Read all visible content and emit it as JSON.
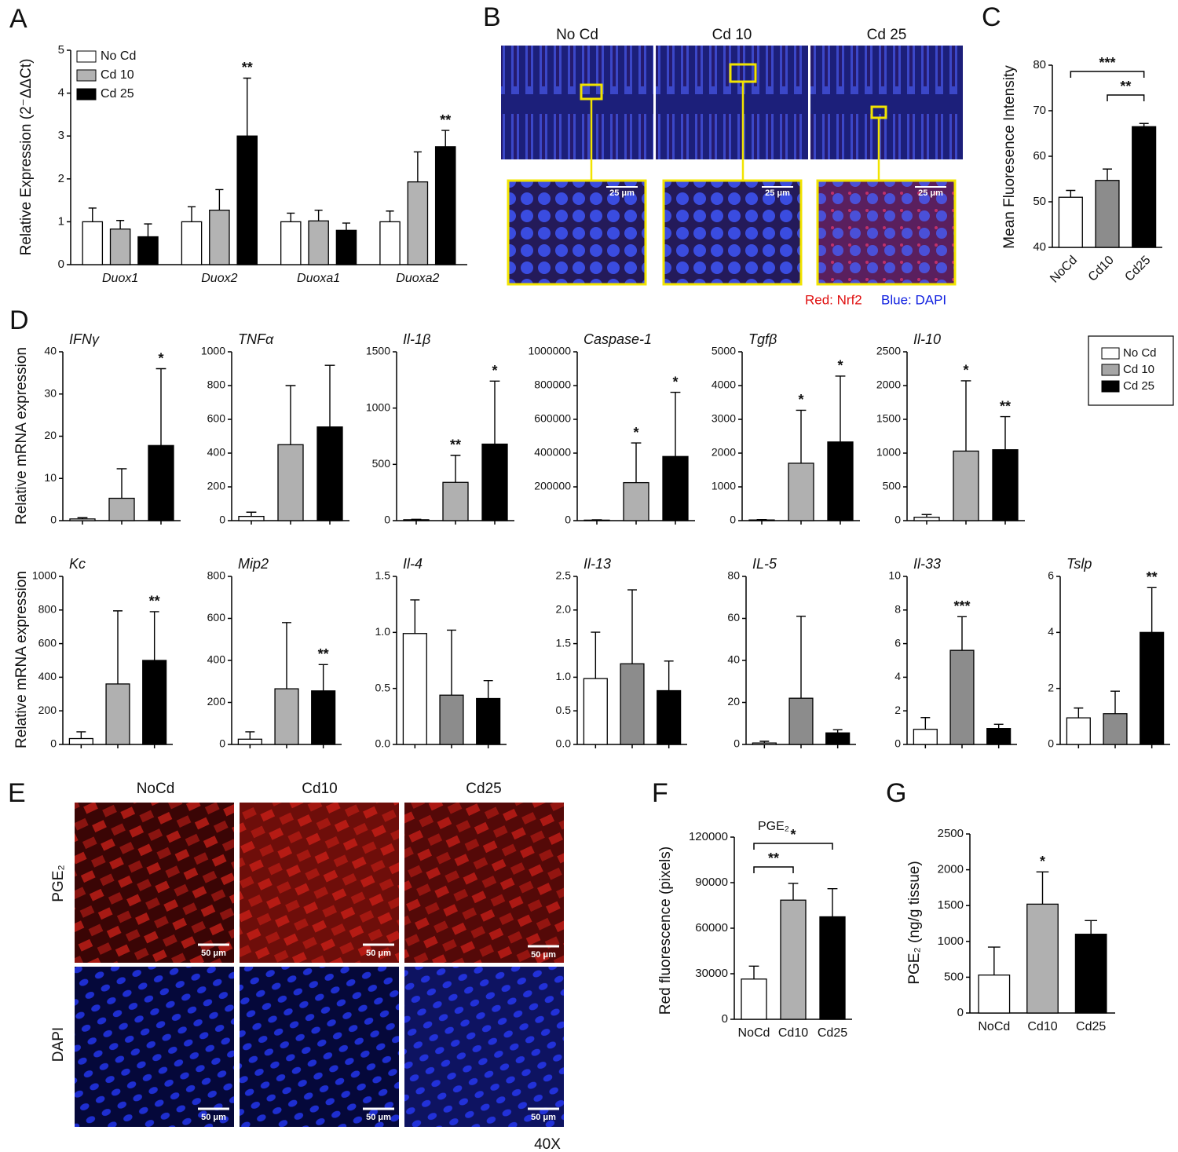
{
  "panel_labels": [
    "A",
    "B",
    "C",
    "D",
    "E",
    "F",
    "G"
  ],
  "panel_B": {
    "columns": [
      "No Cd",
      "Cd 10",
      "Cd 25"
    ],
    "scale_bar": [
      "25 μm",
      "25 μm",
      "25 μm"
    ],
    "stain_legend": [
      "Red: Nrf2",
      "Blue: DAPI"
    ]
  },
  "panel_D": {
    "ylabels": [
      "Relative mRNA expression",
      "Relative mRNA expression"
    ],
    "legend": [
      {
        "name": "No Cd",
        "color": "#ffffff"
      },
      {
        "name": "Cd 10",
        "color": "#a6a6a6"
      },
      {
        "name": "Cd 25",
        "color": "#000000"
      }
    ]
  },
  "panel_E": {
    "columns": [
      "NoCd",
      "Cd10",
      "Cd25"
    ],
    "rows": [
      "PGE₂",
      "DAPI"
    ],
    "scale_bar": [
      "50 μm",
      "50 μm",
      "50 μm",
      "50 μm",
      "50 μm",
      "50 μm"
    ],
    "magnification": "40X"
  },
  "chart_data": [
    {
      "type": "bar",
      "ylabel": "Relative Expression (2⁻ΔΔCt)",
      "categories": [
        "Duox1",
        "Duox2",
        "Duoxa1",
        "Duoxa2"
      ],
      "series": [
        {
          "name": "No Cd",
          "color": "#ffffff",
          "values": [
            1.0,
            1.0,
            1.0,
            1.0
          ],
          "errors": [
            0.32,
            0.35,
            0.2,
            0.25
          ],
          "significance": [
            null,
            null,
            null,
            null
          ]
        },
        {
          "name": "Cd 10",
          "color": "#b3b3b3",
          "values": [
            0.83,
            1.27,
            1.02,
            1.93
          ],
          "errors": [
            0.2,
            0.48,
            0.25,
            0.7
          ],
          "significance": [
            null,
            null,
            null,
            null
          ]
        },
        {
          "name": "Cd 25",
          "color": "#000000",
          "values": [
            0.65,
            3.0,
            0.8,
            2.75
          ],
          "errors": [
            0.3,
            1.35,
            0.17,
            0.38
          ],
          "significance": [
            null,
            "**",
            null,
            "**"
          ]
        }
      ],
      "ylim": [
        0,
        5
      ],
      "yticks": [
        0,
        1,
        2,
        3,
        4,
        5
      ]
    },
    {
      "type": "bar",
      "ylabel": "Mean Fluoresence Intensity",
      "categories": [
        "NoCd",
        "Cd10",
        "Cd25"
      ],
      "values": [
        51,
        54.7,
        66.5
      ],
      "errors": [
        1.5,
        2.5,
        0.7
      ],
      "colors": [
        "#ffffff",
        "#8c8c8c",
        "#000000"
      ],
      "brackets": [
        {
          "from": 0,
          "to": 2,
          "label": "***"
        },
        {
          "from": 1,
          "to": 2,
          "label": "**"
        }
      ],
      "ylim": [
        40,
        80
      ],
      "yticks": [
        40,
        50,
        60,
        70,
        80
      ]
    },
    {
      "type": "bar",
      "title": "PGE₂",
      "ylabel": "Red fluorescence (pixels)",
      "categories": [
        "NoCd",
        "Cd10",
        "Cd25"
      ],
      "values": [
        26500,
        78500,
        67500
      ],
      "errors": [
        8500,
        11000,
        18500
      ],
      "colors": [
        "#ffffff",
        "#b0b0b0",
        "#000000"
      ],
      "brackets": [
        {
          "from": 0,
          "to": 2,
          "label": "*"
        },
        {
          "from": 0,
          "to": 1,
          "label": "**"
        }
      ],
      "ylim": [
        0,
        120000
      ],
      "yticks": [
        0,
        30000,
        60000,
        90000,
        120000
      ]
    },
    {
      "type": "bar",
      "ylabel": "PGE₂ (ng/g tissue)",
      "categories": [
        "NoCd",
        "Cd10",
        "Cd25"
      ],
      "values": [
        530,
        1520,
        1100
      ],
      "errors": [
        390,
        450,
        190
      ],
      "colors": [
        "#ffffff",
        "#b0b0b0",
        "#000000"
      ],
      "significance": [
        null,
        "*",
        null
      ],
      "ylim": [
        0,
        2500
      ],
      "yticks": [
        0,
        500,
        1000,
        1500,
        2000,
        2500
      ]
    },
    {
      "type": "bar",
      "title": "IFNγ",
      "values": [
        0.4,
        5.3,
        17.8
      ],
      "errors": [
        0.3,
        7,
        18.2
      ],
      "colors": [
        "#ffffff",
        "#b0b0b0",
        "#000000"
      ],
      "significance": [
        null,
        null,
        "*"
      ],
      "ylim": [
        0,
        40
      ],
      "yticks": [
        0,
        10,
        20,
        30,
        40
      ]
    },
    {
      "type": "bar",
      "title": "TNFα",
      "values": [
        25,
        450,
        555
      ],
      "errors": [
        25,
        350,
        365
      ],
      "colors": [
        "#ffffff",
        "#b0b0b0",
        "#000000"
      ],
      "ylim": [
        0,
        1000
      ],
      "yticks": [
        0,
        200,
        400,
        600,
        800,
        1000
      ]
    },
    {
      "type": "bar",
      "title": "Il-1β",
      "values": [
        8,
        340,
        680
      ],
      "errors": [
        4,
        240,
        560
      ],
      "colors": [
        "#ffffff",
        "#b0b0b0",
        "#000000"
      ],
      "significance": [
        null,
        "**",
        "*"
      ],
      "ylim": [
        0,
        1500
      ],
      "yticks": [
        0,
        500,
        1000,
        1500
      ]
    },
    {
      "type": "bar",
      "title": "Caspase-1",
      "values": [
        3000,
        225000,
        380000
      ],
      "errors": [
        2000,
        235000,
        380000
      ],
      "colors": [
        "#ffffff",
        "#b0b0b0",
        "#000000"
      ],
      "significance": [
        null,
        "*",
        "*"
      ],
      "ylim": [
        0,
        1000000
      ],
      "yticks": [
        0,
        200000,
        400000,
        600000,
        800000,
        1000000
      ]
    },
    {
      "type": "bar",
      "title": "Tgfβ",
      "values": [
        20,
        1700,
        2330
      ],
      "errors": [
        10,
        1570,
        1950
      ],
      "colors": [
        "#ffffff",
        "#b0b0b0",
        "#000000"
      ],
      "significance": [
        null,
        "*",
        "*"
      ],
      "ylim": [
        0,
        5000
      ],
      "yticks": [
        0,
        1000,
        2000,
        3000,
        4000,
        5000
      ]
    },
    {
      "type": "bar",
      "title": "Il-10",
      "values": [
        50,
        1030,
        1050
      ],
      "errors": [
        40,
        1040,
        490
      ],
      "colors": [
        "#ffffff",
        "#b0b0b0",
        "#000000"
      ],
      "significance": [
        null,
        "*",
        "**"
      ],
      "ylim": [
        0,
        2500
      ],
      "yticks": [
        0,
        500,
        1000,
        1500,
        2000,
        2500
      ]
    },
    {
      "type": "bar",
      "title": "Kc",
      "values": [
        35,
        360,
        500
      ],
      "errors": [
        40,
        435,
        290
      ],
      "colors": [
        "#ffffff",
        "#b0b0b0",
        "#000000"
      ],
      "significance": [
        null,
        null,
        "**"
      ],
      "ylim": [
        0,
        1000
      ],
      "yticks": [
        0,
        200,
        400,
        600,
        800,
        1000
      ]
    },
    {
      "type": "bar",
      "title": "Mip2",
      "values": [
        25,
        265,
        255
      ],
      "errors": [
        35,
        315,
        125
      ],
      "colors": [
        "#ffffff",
        "#b0b0b0",
        "#000000"
      ],
      "significance": [
        null,
        null,
        "**"
      ],
      "ylim": [
        0,
        800
      ],
      "yticks": [
        0,
        200,
        400,
        600,
        800
      ]
    },
    {
      "type": "bar",
      "title": "Il-4",
      "values": [
        0.99,
        0.44,
        0.41
      ],
      "errors": [
        0.3,
        0.58,
        0.16
      ],
      "colors": [
        "#ffffff",
        "#8c8c8c",
        "#000000"
      ],
      "ylim": [
        0,
        1.5
      ],
      "yticks": [
        {
          "value": 0,
          "label": "0.0"
        },
        0.5,
        {
          "value": 1,
          "label": "1.0"
        },
        1.5
      ]
    },
    {
      "type": "bar",
      "title": "Il-13",
      "values": [
        0.98,
        1.2,
        0.8
      ],
      "errors": [
        0.69,
        1.1,
        0.44
      ],
      "colors": [
        "#ffffff",
        "#8c8c8c",
        "#000000"
      ],
      "ylim": [
        0,
        2.5
      ],
      "yticks": [
        {
          "value": 0,
          "label": "0.0"
        },
        0.5,
        {
          "value": 1,
          "label": "1.0"
        },
        1.5,
        {
          "value": 2,
          "label": "2.0"
        },
        2.5
      ]
    },
    {
      "type": "bar",
      "title": "IL-5",
      "values": [
        0.7,
        22,
        5.5
      ],
      "errors": [
        0.8,
        39,
        1.5
      ],
      "colors": [
        "#ffffff",
        "#8c8c8c",
        "#000000"
      ],
      "ylim": [
        0,
        80
      ],
      "yticks": [
        0,
        20,
        40,
        60,
        80
      ]
    },
    {
      "type": "bar",
      "title": "Il-33",
      "values": [
        0.9,
        5.6,
        0.95
      ],
      "errors": [
        0.7,
        2,
        0.25
      ],
      "colors": [
        "#ffffff",
        "#8c8c8c",
        "#000000"
      ],
      "significance": [
        null,
        "***",
        null
      ],
      "ylim": [
        0,
        10
      ],
      "yticks": [
        0,
        2,
        4,
        6,
        8,
        10
      ]
    },
    {
      "type": "bar",
      "title": "Tslp",
      "values": [
        0.95,
        1.1,
        4.0
      ],
      "errors": [
        0.35,
        0.8,
        1.6
      ],
      "colors": [
        "#ffffff",
        "#8c8c8c",
        "#000000"
      ],
      "significance": [
        null,
        null,
        "**"
      ],
      "ylim": [
        0,
        6
      ],
      "yticks": [
        0,
        2,
        4,
        6
      ]
    }
  ]
}
